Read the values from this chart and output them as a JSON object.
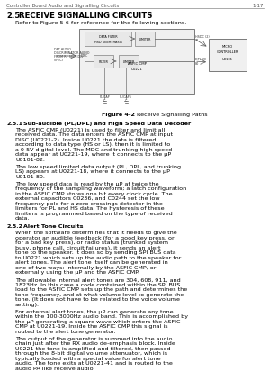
{
  "header_left": "Controller Board Audio and Signalling Circuits",
  "header_right": "1-17",
  "section_num": "2.5",
  "section_title": "RECEIVE SIGNALLING CIRCUITS",
  "section_intro": "Refer to Figure 5-6 for reference for the following sections.",
  "figure_caption_bold": "Figure 4-2",
  "figure_caption_rest": " Receive Signalling Paths",
  "sub251_num": "2.5.1",
  "sub251_title": "Sub-audible (PL/DPL) and High Speed Data Decoder",
  "sub251_paras": [
    "The ASFIC CMP (U0221) is used to filter and limit all received data. The data enters the ASFIC CMP at input DISC (U0221-2). Inside U0221 the data is filtered according to data type (HS or LS), then it is limited to a 0-5V digital level. The MDC and trunking high speed data appear at U0221-19, where it connects to the μP U0101-82.",
    "The low speed limited data output (PL, DPL, and trunking LS) appears at U0221-18, where it connects to the μP U0101-80.",
    "The low speed data is read by the μP at twice the frequency of the sampling waveform; a latch configuration in the ASFIC CMP stores one bit every clock cycle. The external capacitors C0236, and C0244 set the low frequency pole for a zero crossings detector in the limiters for PL and HS data. The hysteresis of these limiters is programmed based on the type of received data."
  ],
  "sub252_num": "2.5.2",
  "sub252_title": "Alert Tone Circuits",
  "sub252_paras": [
    "When the software determines that it needs to give the operator an audible feedback (for a good key press, or for a bad key press), or radio status (trunked system busy, phone call, circuit failures), it sends an alert tone to the speaker. It does so by sending SPI BUS data to U0221 which sets up the audio path to the speaker for alert tones. The alert tone itself can be generated in one of two ways: internally by the ASFIC CMP, or externally using the μP and the ASFIC CMP.",
    "The allowable internal alert tones are 304, 608, 911, and 1823Hz. In this case a code contained within the SPI BUS load to the ASFIC CMP sets up the path and determines the tone frequency, and at what volume level to generate the tone. (It does not have to be related to the voice volume setting).",
    "For external alert tones, the μP can generate any tone within the 100-3000Hz audio band. This is accomplished by the μP generating a square wave which enters the ASFIC CMP at U0221-19. Inside the ASFIC CMP this signal is routed to the alert tone generator.",
    "The output of the generator is summed into the audio chain just after the RX audio de-emphasis block. Inside U0221 the tone is amplified and filtered, then passed through the 8-bit digital volume attenuator, which is typically loaded with a special value for alert tone audio. The tone exits at U0221-41 and is routed to the audio PA like receive audio."
  ],
  "bg_color": "#ffffff",
  "header_color": "#555555",
  "body_color": "#111111",
  "box_edge_color": "#666666",
  "box_face_color": "#f0f0f0",
  "inner_face_color": "#e8e8e8",
  "header_fontsize": 4.0,
  "title_fontsize": 6.2,
  "body_fontsize": 4.6,
  "diagram_label_fontsize": 2.6,
  "inner_label_fontsize": 2.4
}
